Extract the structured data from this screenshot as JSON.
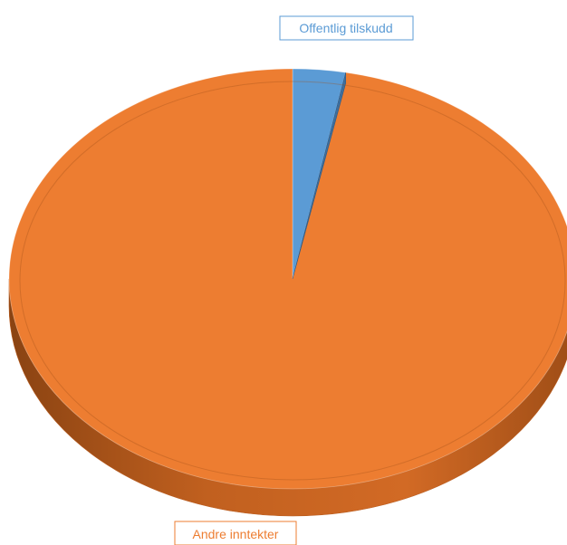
{
  "chart_data": {
    "type": "pie",
    "style": "3d",
    "title": "",
    "slices": [
      {
        "label": "Offentlig tilskudd",
        "value": 3,
        "color": "#5b9bd5"
      },
      {
        "label": "Andre inntekter",
        "value": 97,
        "color": "#ed7d31"
      }
    ]
  }
}
